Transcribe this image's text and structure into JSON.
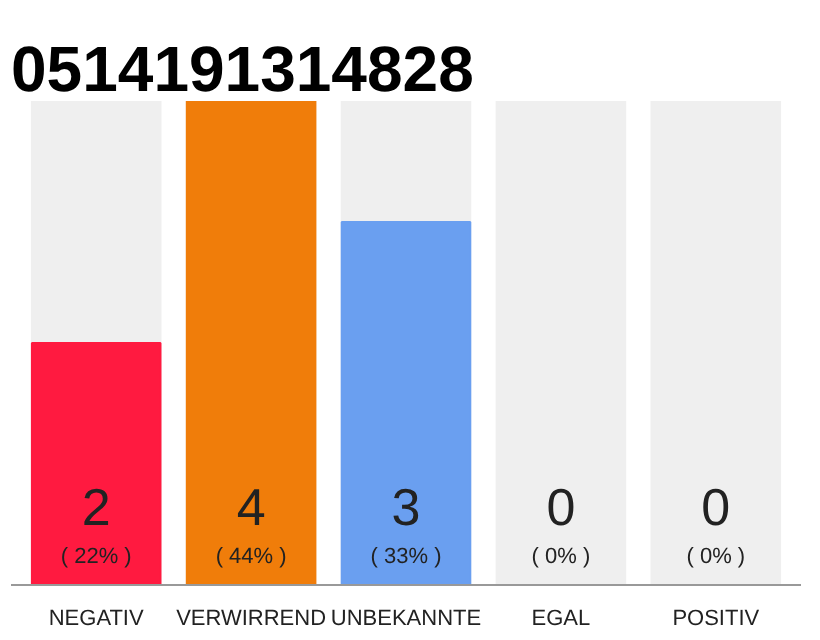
{
  "chart_data": {
    "type": "bar",
    "title": "0514191314828",
    "categories": [
      "NEGATIV",
      "VERWIRREND",
      "UNBEKANNTE",
      "EGAL",
      "POSITIV"
    ],
    "values": [
      22,
      44,
      33,
      0,
      0
    ],
    "colors": [
      "#ff1a40",
      "#f07d0a",
      "#6a9ff0",
      "#cccccc",
      "#cccccc"
    ],
    "value_labels": [
      "( 22% )",
      "( 44% )",
      "( 33% )",
      "( 0% )",
      "( 0% )"
    ],
    "annotations": [
      "2",
      "4",
      "3",
      "0",
      "0"
    ],
    "grid": false
  }
}
